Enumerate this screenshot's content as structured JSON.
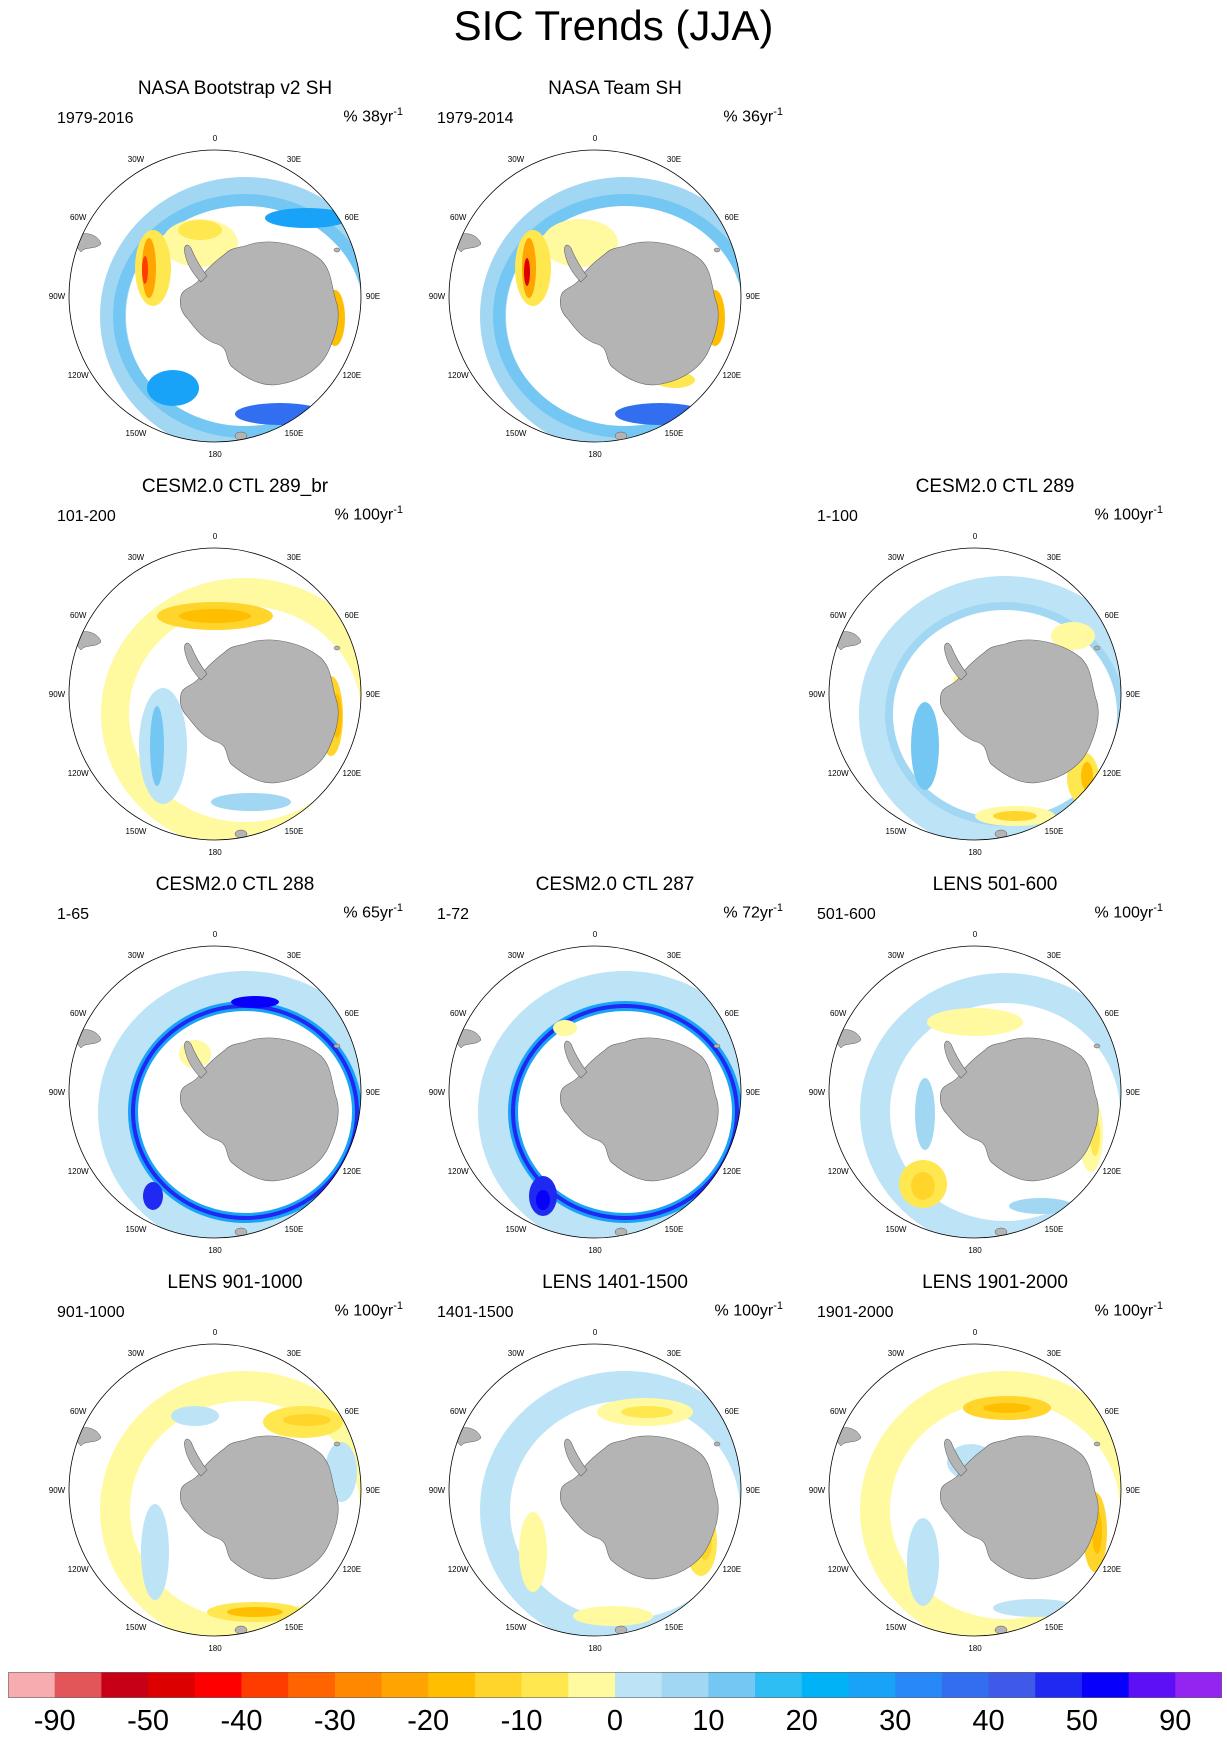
{
  "title": "SIC Trends (JJA)",
  "map_meta": {
    "projection": "south-polar-stereographic",
    "longitude_labels": [
      "0",
      "30E",
      "60E",
      "90E",
      "120E",
      "150E",
      "180",
      "150W",
      "120W",
      "90W",
      "60W",
      "30W"
    ]
  },
  "panels": [
    {
      "id": "p1",
      "title": "NASA Bootstrap v2 SH",
      "period": "1979-2016",
      "units_base": "% 38yr",
      "units_exp": "-1",
      "pattern": "bootstrap"
    },
    {
      "id": "p2",
      "title": "NASA Team SH",
      "period": "1979-2014",
      "units_base": "% 36yr",
      "units_exp": "-1",
      "pattern": "team"
    },
    {
      "id": "p3",
      "title": "CESM2.0 CTL 289_br",
      "period": "101-200",
      "units_base": "% 100yr",
      "units_exp": "-1",
      "pattern": "ctl289br"
    },
    {
      "id": "p4",
      "title": "CESM2.0 CTL 289",
      "period": "1-100",
      "units_base": "% 100yr",
      "units_exp": "-1",
      "pattern": "ctl289"
    },
    {
      "id": "p5",
      "title": "CESM2.0 CTL 288",
      "period": "1-65",
      "units_base": "% 65yr",
      "units_exp": "-1",
      "pattern": "ctl288"
    },
    {
      "id": "p6",
      "title": "CESM2.0 CTL 287",
      "period": "1-72",
      "units_base": "% 72yr",
      "units_exp": "-1",
      "pattern": "ctl287"
    },
    {
      "id": "p7",
      "title": "LENS 501-600",
      "period": "501-600",
      "units_base": "% 100yr",
      "units_exp": "-1",
      "pattern": "lens501"
    },
    {
      "id": "p8",
      "title": "LENS 901-1000",
      "period": "901-1000",
      "units_base": "% 100yr",
      "units_exp": "-1",
      "pattern": "lens901"
    },
    {
      "id": "p9",
      "title": "LENS 1401-1500",
      "period": "1401-1500",
      "units_base": "% 100yr",
      "units_exp": "-1",
      "pattern": "lens1401"
    },
    {
      "id": "p10",
      "title": "LENS 1901-2000",
      "period": "1901-2000",
      "units_base": "% 100yr",
      "units_exp": "-1",
      "pattern": "lens1901"
    }
  ],
  "colorbar": {
    "colors": [
      "#f7acb0",
      "#e25559",
      "#c80016",
      "#dc0000",
      "#ff0000",
      "#ff3c00",
      "#ff6400",
      "#ff8800",
      "#ffa400",
      "#ffbe00",
      "#ffd52c",
      "#ffe74f",
      "#fff9a0",
      "#bde4f6",
      "#a1d7f3",
      "#74c7f2",
      "#2ebef3",
      "#00b2f6",
      "#18a2f8",
      "#2988f7",
      "#326ff0",
      "#3f5ae8",
      "#2029f1",
      "#0700fb",
      "#5d0ff5",
      "#9425f0"
    ],
    "tick_labels": [
      "-90",
      "-50",
      "-40",
      "-30",
      "-20",
      "-10",
      "0",
      "10",
      "20",
      "30",
      "40",
      "50",
      "90"
    ]
  }
}
